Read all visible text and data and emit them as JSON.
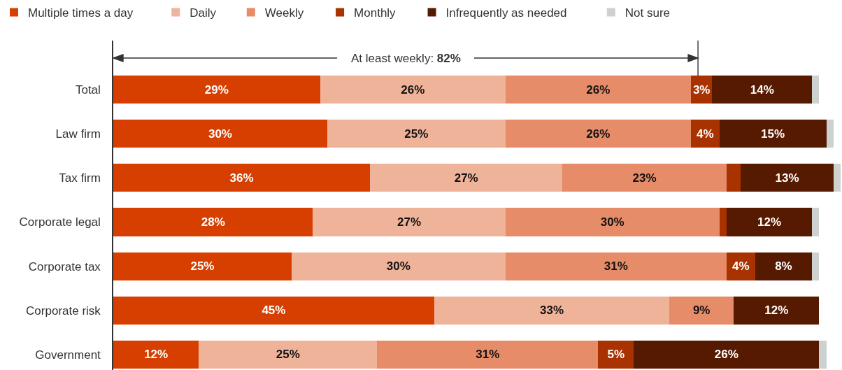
{
  "chart_data": {
    "type": "bar",
    "orientation": "horizontal",
    "stacked": true,
    "categories": [
      "Total",
      "Law firm",
      "Tax firm",
      "Corporate legal",
      "Corporate tax",
      "Corporate risk",
      "Government"
    ],
    "series": [
      {
        "name": "Multiple times a day",
        "color": "#d63f00",
        "values": [
          29,
          30,
          36,
          28,
          25,
          45,
          12
        ],
        "value_labels": [
          "29%",
          "30%",
          "36%",
          "28%",
          "25%",
          "45%",
          "12%"
        ]
      },
      {
        "name": "Daily",
        "color": "#efb39a",
        "values": [
          26,
          25,
          27,
          27,
          30,
          33,
          25
        ],
        "value_labels": [
          "26%",
          "25%",
          "27%",
          "27%",
          "30%",
          "33%",
          "25%"
        ]
      },
      {
        "name": "Weekly",
        "color": "#e68c68",
        "values": [
          26,
          26,
          23,
          30,
          31,
          9,
          31
        ],
        "value_labels": [
          "26%",
          "26%",
          "23%",
          "30%",
          "31%",
          "9%",
          "31%"
        ]
      },
      {
        "name": "Monthly",
        "color": "#a83300",
        "values": [
          3,
          4,
          2,
          1,
          4,
          null,
          5
        ],
        "value_labels": [
          "3%",
          "4%",
          null,
          null,
          "4%",
          null,
          "5%"
        ]
      },
      {
        "name": "Infrequently as needed",
        "color": "#561a00",
        "values": [
          14,
          15,
          13,
          12,
          8,
          12,
          26
        ],
        "value_labels": [
          "14%",
          "15%",
          "13%",
          "12%",
          "8%",
          "12%",
          "26%"
        ]
      },
      {
        "name": "Not sure",
        "color": "#cdd2d1",
        "values": [
          1,
          1,
          1,
          1,
          1,
          null,
          1
        ]
      }
    ],
    "xlim": [
      0,
      102
    ],
    "tick_labels": "y",
    "legend": "top",
    "ref_lines": [
      {
        "axis": "x",
        "value": 82,
        "label": "At least weekly: 82%"
      }
    ]
  }
}
